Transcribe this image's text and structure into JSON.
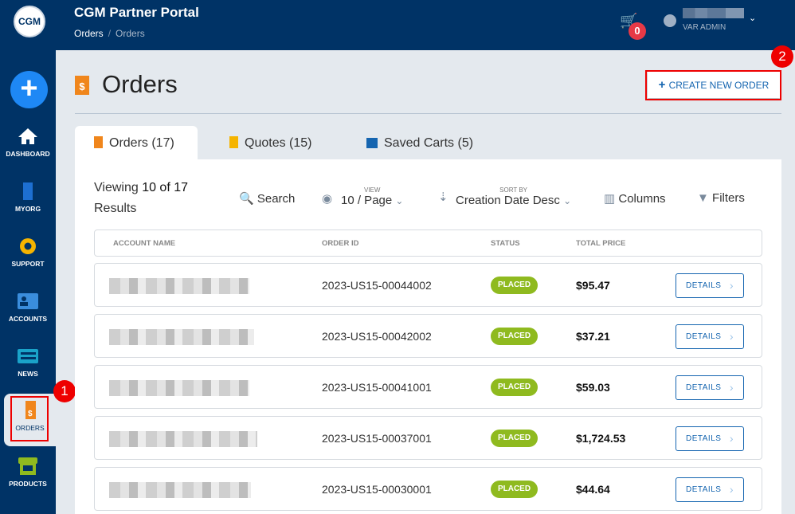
{
  "header": {
    "logo": "CGM",
    "title": "CGM Partner Portal",
    "breadcrumb": [
      "Orders",
      "Orders"
    ],
    "cart_count": "0",
    "user_role": "VAR ADMIN"
  },
  "sidebar": {
    "items": [
      {
        "label": "DASHBOARD",
        "icon": "home-icon"
      },
      {
        "label": "MYORG",
        "icon": "building-icon"
      },
      {
        "label": "SUPPORT",
        "icon": "lifebuoy-icon"
      },
      {
        "label": "ACCOUNTS",
        "icon": "id-card-icon"
      },
      {
        "label": "NEWS",
        "icon": "newspaper-icon"
      },
      {
        "label": "ORDERS",
        "icon": "invoice-icon",
        "active": true
      },
      {
        "label": "PRODUCTS",
        "icon": "store-icon"
      }
    ]
  },
  "annotations": [
    "1",
    "2"
  ],
  "page": {
    "title": "Orders",
    "create_label": "CREATE NEW ORDER"
  },
  "tabs": [
    {
      "label": "Orders (17)"
    },
    {
      "label": "Quotes (15)"
    },
    {
      "label": "Saved Carts (5)"
    }
  ],
  "toolbar": {
    "viewing_prefix": "Viewing ",
    "viewing_count": "10 of 17",
    "viewing_suffix": "Results",
    "search": "Search",
    "view_label": "VIEW",
    "view_value": "10 / Page",
    "sort_label": "SORT BY",
    "sort_value": "Creation Date Desc",
    "columns": "Columns",
    "filters": "Filters"
  },
  "table": {
    "headers": [
      "ACCOUNT NAME",
      "ORDER ID",
      "STATUS",
      "TOTAL PRICE"
    ],
    "rows": [
      {
        "order_id": "2023-US15-00044002",
        "status": "PLACED",
        "price": "$95.47",
        "action": "DETAILS"
      },
      {
        "order_id": "2023-US15-00042002",
        "status": "PLACED",
        "price": "$37.21",
        "action": "DETAILS"
      },
      {
        "order_id": "2023-US15-00041001",
        "status": "PLACED",
        "price": "$59.03",
        "action": "DETAILS"
      },
      {
        "order_id": "2023-US15-00037001",
        "status": "PLACED",
        "price": "$1,724.53",
        "action": "DETAILS"
      },
      {
        "order_id": "2023-US15-00030001",
        "status": "PLACED",
        "price": "$44.64",
        "action": "DETAILS"
      }
    ]
  },
  "colors": {
    "navy": "#003366",
    "accent": "#1565b0",
    "placed": "#8fba1f",
    "orange": "#f0861c",
    "annotation": "#ee0000"
  }
}
